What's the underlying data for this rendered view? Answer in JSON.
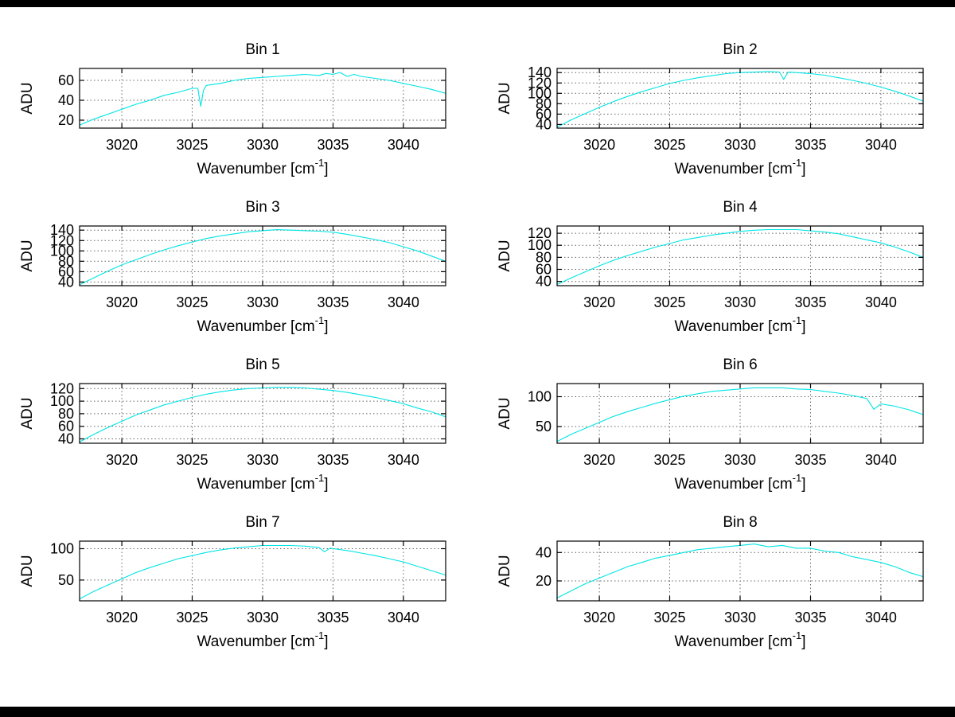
{
  "figure": {
    "background": "#FFFFFF",
    "line_color": "#00E5E5",
    "axis_color": "#000000",
    "grid_style": "dotted",
    "layout": "4x2 subplots"
  },
  "xlabel": {
    "pre": "Wavenumber [cm",
    "sup": "-1",
    "post": "]"
  },
  "chart_data": [
    {
      "type": "line",
      "title": "Bin 1",
      "ylabel": "ADU",
      "grid": true,
      "xlim": [
        3017,
        3043
      ],
      "ylim": [
        12,
        72
      ],
      "xticks": [
        3020,
        3025,
        3030,
        3035,
        3040
      ],
      "yticks": [
        20,
        40,
        60
      ],
      "x": [
        3017,
        3018,
        3019,
        3020,
        3021,
        3022,
        3023,
        3024,
        3025,
        3025.4,
        3025.6,
        3025.8,
        3026,
        3027,
        3028,
        3029,
        3030,
        3031,
        3032,
        3033,
        3034,
        3034.5,
        3035,
        3035.5,
        3036,
        3036.5,
        3037,
        3038,
        3039,
        3040,
        3041,
        3042,
        3043
      ],
      "y": [
        15,
        21,
        26,
        31,
        36,
        40,
        45,
        48,
        52,
        52,
        34,
        50,
        55,
        57,
        60,
        62,
        63,
        64,
        65,
        66,
        65,
        67,
        66,
        68,
        64,
        66,
        64,
        62,
        60,
        57,
        54,
        51,
        47
      ]
    },
    {
      "type": "line",
      "title": "Bin 2",
      "ylabel": "ADU",
      "grid": true,
      "xlim": [
        3017,
        3043
      ],
      "ylim": [
        33,
        148
      ],
      "xticks": [
        3020,
        3025,
        3030,
        3035,
        3040
      ],
      "yticks": [
        40,
        60,
        80,
        100,
        120,
        140
      ],
      "x": [
        3017,
        3018,
        3019,
        3020,
        3021,
        3022,
        3023,
        3024,
        3025,
        3026,
        3027,
        3028,
        3029,
        3030,
        3031,
        3032,
        3032.8,
        3033.1,
        3033.4,
        3034,
        3035,
        3036,
        3037,
        3038,
        3039,
        3040,
        3041,
        3042,
        3043
      ],
      "y": [
        35,
        49,
        61,
        73,
        84,
        94,
        103,
        111,
        119,
        125,
        130,
        134,
        138,
        140,
        141,
        142,
        141,
        127,
        141,
        140,
        138,
        135,
        130,
        125,
        119,
        112,
        104,
        95,
        85
      ]
    },
    {
      "type": "line",
      "title": "Bin 3",
      "ylabel": "ADU",
      "grid": true,
      "xlim": [
        3017,
        3043
      ],
      "ylim": [
        33,
        148
      ],
      "xticks": [
        3020,
        3025,
        3030,
        3035,
        3040
      ],
      "yticks": [
        40,
        60,
        80,
        100,
        120,
        140
      ],
      "x": [
        3017,
        3018,
        3019,
        3020,
        3021,
        3022,
        3023,
        3024,
        3025,
        3026,
        3027,
        3028,
        3029,
        3030,
        3031,
        3032,
        3033,
        3034,
        3035,
        3036,
        3037,
        3038,
        3039,
        3040,
        3041,
        3042,
        3043
      ],
      "y": [
        35,
        48,
        61,
        73,
        83,
        93,
        102,
        110,
        117,
        124,
        129,
        133,
        137,
        139,
        141,
        140,
        139,
        138,
        136,
        132,
        127,
        122,
        116,
        108,
        100,
        90,
        80
      ]
    },
    {
      "type": "line",
      "title": "Bin 4",
      "ylabel": "ADU",
      "grid": true,
      "xlim": [
        3017,
        3043
      ],
      "ylim": [
        33,
        132
      ],
      "xticks": [
        3020,
        3025,
        3030,
        3035,
        3040
      ],
      "yticks": [
        40,
        60,
        80,
        100,
        120
      ],
      "x": [
        3017,
        3018,
        3019,
        3020,
        3021,
        3022,
        3023,
        3024,
        3025,
        3026,
        3027,
        3028,
        3029,
        3030,
        3031,
        3032,
        3033,
        3034,
        3035,
        3036,
        3037,
        3038,
        3039,
        3040,
        3041,
        3042,
        3043
      ],
      "y": [
        35,
        46,
        56,
        66,
        75,
        83,
        90,
        97,
        103,
        109,
        113,
        117,
        120,
        123,
        125,
        126,
        126,
        126,
        124,
        122,
        119,
        114,
        109,
        104,
        97,
        89,
        80
      ]
    },
    {
      "type": "line",
      "title": "Bin 5",
      "ylabel": "ADU",
      "grid": true,
      "xlim": [
        3017,
        3043
      ],
      "ylim": [
        33,
        128
      ],
      "xticks": [
        3020,
        3025,
        3030,
        3035,
        3040
      ],
      "yticks": [
        40,
        60,
        80,
        100,
        120
      ],
      "x": [
        3017,
        3018,
        3019,
        3020,
        3021,
        3022,
        3023,
        3024,
        3025,
        3026,
        3027,
        3028,
        3029,
        3030,
        3031,
        3032,
        3033,
        3034,
        3035,
        3036,
        3037,
        3038,
        3039,
        3040,
        3041,
        3042,
        3043
      ],
      "y": [
        35,
        47,
        58,
        68,
        78,
        86,
        94,
        100,
        106,
        111,
        115,
        118,
        120,
        121,
        122,
        122,
        121,
        119,
        117,
        114,
        110,
        106,
        101,
        96,
        89,
        83,
        75
      ]
    },
    {
      "type": "line",
      "title": "Bin 6",
      "ylabel": "ADU",
      "grid": true,
      "xlim": [
        3017,
        3043
      ],
      "ylim": [
        22,
        122
      ],
      "xticks": [
        3020,
        3025,
        3030,
        3035,
        3040
      ],
      "yticks": [
        50,
        100
      ],
      "x": [
        3017,
        3018,
        3019,
        3020,
        3021,
        3022,
        3023,
        3024,
        3025,
        3026,
        3027,
        3028,
        3029,
        3030,
        3031,
        3032,
        3033,
        3034,
        3035,
        3036,
        3037,
        3038,
        3039,
        3039.5,
        3040,
        3041,
        3042,
        3043
      ],
      "y": [
        25,
        37,
        47,
        57,
        67,
        75,
        82,
        89,
        95,
        101,
        105,
        109,
        111,
        113,
        115,
        115,
        115,
        113,
        112,
        109,
        106,
        102,
        97,
        79,
        88,
        84,
        78,
        70
      ]
    },
    {
      "type": "line",
      "title": "Bin 7",
      "ylabel": "ADU",
      "grid": true,
      "xlim": [
        3017,
        3043
      ],
      "ylim": [
        17,
        112
      ],
      "xticks": [
        3020,
        3025,
        3030,
        3035,
        3040
      ],
      "yticks": [
        50,
        100
      ],
      "x": [
        3017,
        3018,
        3019,
        3020,
        3021,
        3022,
        3023,
        3024,
        3025,
        3026,
        3027,
        3028,
        3029,
        3030,
        3031,
        3032,
        3033,
        3034,
        3034.4,
        3034.8,
        3035,
        3036,
        3037,
        3038,
        3039,
        3040,
        3041,
        3042,
        3043
      ],
      "y": [
        20,
        32,
        42,
        52,
        62,
        70,
        77,
        84,
        89,
        94,
        98,
        101,
        103,
        105,
        105,
        105,
        104,
        102,
        95,
        101,
        100,
        97,
        93,
        89,
        84,
        79,
        72,
        65,
        58
      ]
    },
    {
      "type": "line",
      "title": "Bin 8",
      "ylabel": "ADU",
      "grid": true,
      "xlim": [
        3017,
        3043
      ],
      "ylim": [
        6,
        48
      ],
      "xticks": [
        3020,
        3025,
        3030,
        3035,
        3040
      ],
      "yticks": [
        20,
        40
      ],
      "x": [
        3017,
        3018,
        3019,
        3020,
        3021,
        3022,
        3023,
        3024,
        3025,
        3026,
        3027,
        3028,
        3029,
        3030,
        3031,
        3032,
        3033,
        3034,
        3035,
        3036,
        3037,
        3038,
        3039,
        3040,
        3041,
        3042,
        3043
      ],
      "y": [
        8,
        13,
        18,
        22,
        26,
        30,
        33,
        36,
        38,
        40,
        42,
        43,
        44,
        45,
        46,
        44,
        45,
        43,
        43,
        41,
        40,
        37,
        35,
        33,
        30,
        26,
        23
      ]
    }
  ]
}
